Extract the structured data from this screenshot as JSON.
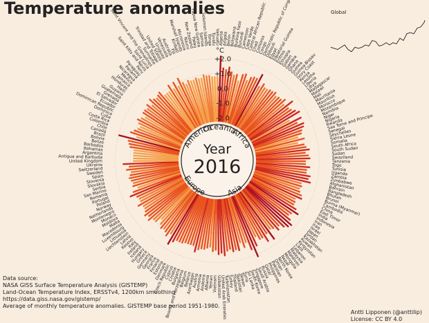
{
  "page": {
    "title": "Temperature anomalies"
  },
  "source": {
    "lines": [
      "Data source:",
      "NASA GISS Surface Temperature Analysis (GISTEMP)",
      "Land-Ocean Temperature Index, ERSSTv4, 1200km smoothing",
      "https://data.giss.nasa.gov/gistemp/",
      "Average of monthly temperature anomalies. GISTEMP base period 1951-1980."
    ]
  },
  "credit": {
    "author": "Antti Lipponen (@anttilip)",
    "license": "License: CC BY 4.0"
  },
  "chart_data": {
    "type": "bar",
    "title": "Temperature anomalies",
    "center_label": "Year",
    "year": "2016",
    "unit": "°C",
    "radial_ticks": [
      "+2.0",
      "+1.0",
      "0.0",
      "-1.0",
      "-2.0"
    ],
    "ylim": [
      -2.0,
      2.5
    ],
    "colors": {
      "warm_high": "#a8121e",
      "warm_mid": "#e8531f",
      "warm_low": "#f5a04a",
      "background": "#f9ede0"
    },
    "continents": [
      "Oceania",
      "Africa",
      "Asia",
      "Europe",
      "America"
    ],
    "categories": [
      "Algeria",
      "Angola",
      "Benin",
      "Botswana",
      "Burkina Faso",
      "Burundi",
      "Cameroon",
      "Cape Verde",
      "Central African Republic",
      "Chad",
      "Comoros",
      "Congo",
      "Democratic Republic of Congo",
      "Djibouti",
      "Egypt",
      "Equatorial Guinea",
      "Eritrea",
      "Ethiopia",
      "Gabon",
      "Gambia",
      "Ghana",
      "Guinea",
      "Guinea-Bissau",
      "Ivory Coast",
      "Kenya",
      "Lesotho",
      "Liberia",
      "Libya",
      "Madagascar",
      "Malawi",
      "Mali",
      "Mauritania",
      "Mauritius",
      "Morocco",
      "Mozambique",
      "Namibia",
      "Niger",
      "Nigeria",
      "Rwanda",
      "Sao Tome and Principe",
      "Senegal",
      "Seychelles",
      "Sierra Leone",
      "Somalia",
      "South Africa",
      "South Sudan",
      "Sudan",
      "Swaziland",
      "Tanzania",
      "Togo",
      "Tunisia",
      "Uganda",
      "Zambia",
      "Zimbabwe",
      "Afghanistan",
      "Bahrain",
      "Bangladesh",
      "Bhutan",
      "Brunei",
      "Burma (Myanmar)",
      "Cambodia",
      "China",
      "East Timor",
      "India",
      "Indonesia",
      "Iran",
      "Iraq",
      "Israel",
      "Japan",
      "Jordan",
      "Kazakhstan",
      "Kuwait",
      "Kyrgyzstan",
      "Laos",
      "Lebanon",
      "Malaysia",
      "Maldives",
      "Mongolia",
      "Nepal",
      "North Korea",
      "Oman",
      "Pakistan",
      "Philippines",
      "Qatar",
      "Russia",
      "Saudi Arabia",
      "Singapore",
      "South Korea",
      "Sri Lanka",
      "Syria",
      "Taiwan",
      "Tajikistan",
      "Thailand",
      "Turkey",
      "Turkmenistan",
      "United Arab Emirates",
      "Uzbekistan",
      "Vietnam",
      "Yemen",
      "Albania",
      "Andorra",
      "Armenia",
      "Austria",
      "Azerbaijan",
      "Belarus",
      "Belgium",
      "Bosnia and Herzegovina",
      "Bulgaria",
      "Croatia",
      "Cyprus",
      "Czech Republic",
      "Denmark",
      "Estonia",
      "Finland",
      "France",
      "Georgia",
      "Germany",
      "Greece",
      "Hungary",
      "Iceland",
      "Ireland",
      "Italy",
      "Kosovo",
      "Latvia",
      "Liechtenstein",
      "Lithuania",
      "Luxembourg",
      "Macedonia",
      "Malta",
      "Moldova",
      "Monaco",
      "Montenegro",
      "Netherlands",
      "Norway",
      "Poland",
      "Portugal",
      "Romania",
      "San Marino",
      "Serbia",
      "Slovakia",
      "Slovenia",
      "Spain",
      "Sweden",
      "Switzerland",
      "Ukraine",
      "United Kingdom",
      "Antigua and Barbuda",
      "Argentina",
      "Bahamas",
      "Barbados",
      "Belize",
      "Bolivia",
      "Brazil",
      "Canada",
      "Chile",
      "Colombia",
      "Costa Rica",
      "Cuba",
      "Dominica",
      "Dominican Republic",
      "Ecuador",
      "El Salvador",
      "Grenada",
      "Guatemala",
      "Guyana",
      "Haiti",
      "Honduras",
      "Jamaica",
      "Mexico",
      "Nicaragua",
      "Panama",
      "Paraguay",
      "Peru",
      "Saint Kitts and Nevis",
      "Saint Lucia",
      "Saint Vincent and the Grenadines",
      "Suriname",
      "Trinidad and Tobago",
      "United States",
      "Uruguay",
      "Venezuela",
      "Australia",
      "Fiji",
      "Kiribati",
      "Marshall Islands",
      "Micronesia",
      "Nauru",
      "New Zealand",
      "Palau",
      "Papua New Guinea",
      "Samoa",
      "Solomon Islands",
      "Tonga",
      "Tuvalu",
      "Vanuatu"
    ],
    "values": [
      2.2,
      1.4,
      1.3,
      1.5,
      1.2,
      1.0,
      1.1,
      0.7,
      1.2,
      1.3,
      0.9,
      1.2,
      1.3,
      1.3,
      1.7,
      0.9,
      1.2,
      1.0,
      1.0,
      1.1,
      1.1,
      1.2,
      1.0,
      1.1,
      1.1,
      1.3,
      1.0,
      1.6,
      1.1,
      1.2,
      1.4,
      1.6,
      0.7,
      1.5,
      1.1,
      1.5,
      1.4,
      1.2,
      1.1,
      0.8,
      1.2,
      0.7,
      1.1,
      1.2,
      1.4,
      1.1,
      1.3,
      1.4,
      1.1,
      1.1,
      1.4,
      1.2,
      1.2,
      1.5,
      1.4,
      1.6,
      1.0,
      1.1,
      1.0,
      1.1,
      1.3,
      1.4,
      1.0,
      1.1,
      1.1,
      1.4,
      1.7,
      1.3,
      1.2,
      1.5,
      1.8,
      1.7,
      1.5,
      1.2,
      1.4,
      1.1,
      1.0,
      1.7,
      1.1,
      1.6,
      1.2,
      1.2,
      0.9,
      1.5,
      2.2,
      1.6,
      1.0,
      1.3,
      0.9,
      1.4,
      1.3,
      1.4,
      1.2,
      1.3,
      1.6,
      1.4,
      1.5,
      1.2,
      1.3,
      1.0,
      1.1,
      1.2,
      1.2,
      1.3,
      1.5,
      1.1,
      1.1,
      1.1,
      1.1,
      1.2,
      1.2,
      1.2,
      1.4,
      1.7,
      1.0,
      1.3,
      1.1,
      1.0,
      1.1,
      0.9,
      0.6,
      1.0,
      1.0,
      1.3,
      1.1,
      1.3,
      1.1,
      1.0,
      1.0,
      1.3,
      1.0,
      1.0,
      1.1,
      1.5,
      1.2,
      0.8,
      1.1,
      1.0,
      1.1,
      1.2,
      1.1,
      1.0,
      1.3,
      1.1,
      1.5,
      0.8,
      0.8,
      0.8,
      0.8,
      0.8,
      1.1,
      1.2,
      1.3,
      2.0,
      0.8,
      1.3,
      1.1,
      0.9,
      0.8,
      1.0,
      1.2,
      1.0,
      0.8,
      1.1,
      1.1,
      1.0,
      1.2,
      0.9,
      1.3,
      1.1,
      1.0,
      1.1,
      1.2,
      0.8,
      0.8,
      0.8,
      1.2,
      0.8,
      1.2,
      0.8,
      1.3,
      0.9,
      0.7,
      0.9,
      0.8,
      0.8,
      0.9,
      0.8,
      0.8,
      1.0,
      0.9,
      0.9,
      0.8,
      0.8,
      0.8
    ],
    "inset": {
      "title": "Global",
      "x": [
        1880,
        1885,
        1890,
        1895,
        1900,
        1905,
        1910,
        1915,
        1920,
        1925,
        1930,
        1935,
        1940,
        1945,
        1950,
        1955,
        1960,
        1965,
        1970,
        1975,
        1980,
        1985,
        1990,
        1995,
        2000,
        2005,
        2010,
        2015,
        2016
      ],
      "y": [
        -0.2,
        -0.25,
        -0.3,
        -0.2,
        -0.1,
        -0.3,
        -0.4,
        -0.2,
        -0.25,
        -0.2,
        -0.1,
        -0.15,
        0.1,
        0.05,
        -0.15,
        -0.1,
        0.0,
        -0.1,
        0.0,
        -0.05,
        0.2,
        0.1,
        0.4,
        0.45,
        0.4,
        0.65,
        0.7,
        0.9,
        1.0
      ]
    }
  }
}
